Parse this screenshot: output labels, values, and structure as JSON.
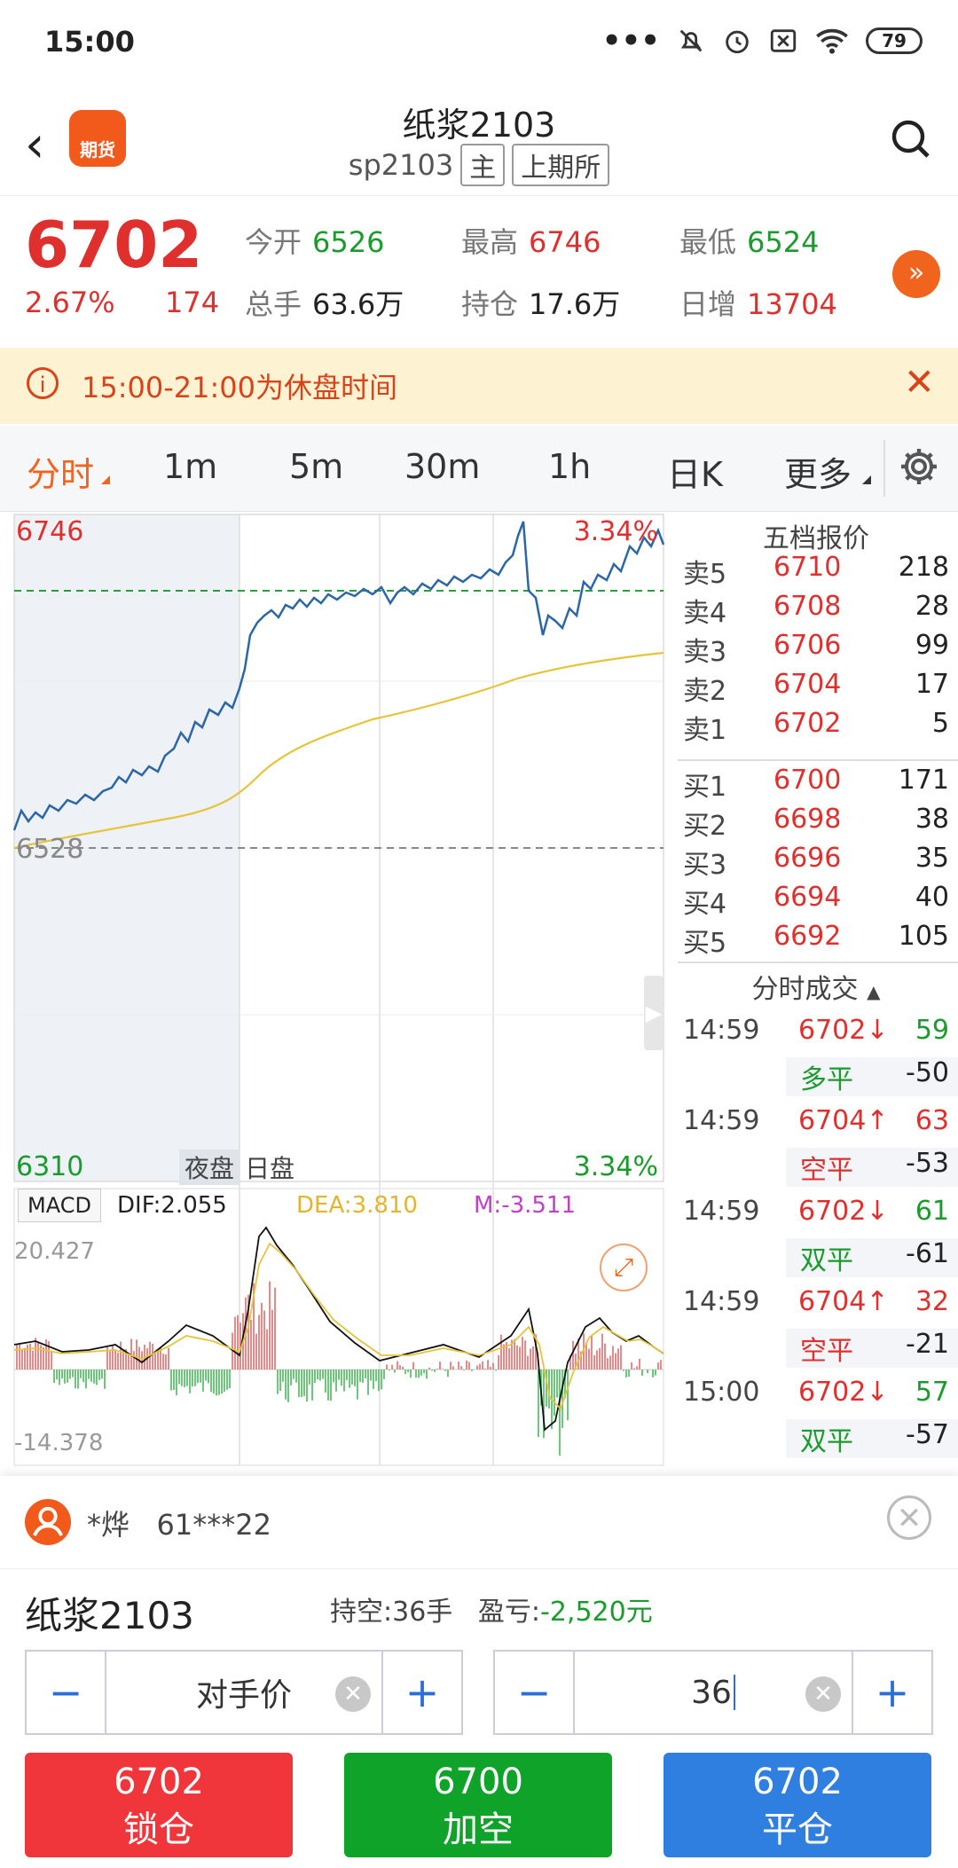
{
  "status_bar": {
    "time": "15:00",
    "battery": "79"
  },
  "header": {
    "logo_text": "期货",
    "title": "纸浆2103",
    "code": "sp2103",
    "tag_main": "主",
    "tag_exchange": "上期所"
  },
  "quote": {
    "price": "6702",
    "pct": "2.67%",
    "change": "174",
    "open_label": "今开",
    "open": "6526",
    "high_label": "最高",
    "high": "6746",
    "low_label": "最低",
    "low": "6524",
    "volume_label": "总手",
    "volume": "63.6万",
    "oi_label": "持仓",
    "oi": "17.6万",
    "daily_label": "日增",
    "daily": "13704"
  },
  "notice": {
    "text": "15:00-21:00为休盘时间"
  },
  "tabs": [
    {
      "label": "分时"
    },
    {
      "label": "1m"
    },
    {
      "label": "5m"
    },
    {
      "label": "30m"
    },
    {
      "label": "1h"
    },
    {
      "label": "日K"
    },
    {
      "label": "更多"
    }
  ],
  "chart": {
    "top_price": "6746",
    "top_pct": "3.34%",
    "base_price": "6528",
    "bottom_price": "6310",
    "bottom_pct": "3.34%",
    "night_label": "夜盘",
    "day_label": "日盘",
    "macd_label": "MACD",
    "dif": "DIF:2.055",
    "dea": "DEA:3.810",
    "m": "M:-3.511",
    "macd_top": "20.427",
    "macd_bottom": "-14.378"
  },
  "chart_data": {
    "type": "line",
    "series": [],
    "ylim": [
      6310,
      6746
    ],
    "reference": 6528
  },
  "orderbook": {
    "title": "五档报价",
    "asks": [
      {
        "label": "卖5",
        "price": "6710",
        "qty": "218"
      },
      {
        "label": "卖4",
        "price": "6708",
        "qty": "28"
      },
      {
        "label": "卖3",
        "price": "6706",
        "qty": "99"
      },
      {
        "label": "卖2",
        "price": "6704",
        "qty": "17"
      },
      {
        "label": "卖1",
        "price": "6702",
        "qty": "5"
      }
    ],
    "bids": [
      {
        "label": "买1",
        "price": "6700",
        "qty": "171"
      },
      {
        "label": "买2",
        "price": "6698",
        "qty": "38"
      },
      {
        "label": "买3",
        "price": "6696",
        "qty": "35"
      },
      {
        "label": "买4",
        "price": "6694",
        "qty": "40"
      },
      {
        "label": "买5",
        "price": "6692",
        "qty": "105"
      }
    ],
    "trades_title": "分时成交",
    "trades": [
      {
        "time": "14:59",
        "price": "6702↓",
        "qty": "59",
        "type": "多平",
        "oi": "-50",
        "dir": "down"
      },
      {
        "time": "14:59",
        "price": "6704↑",
        "qty": "63",
        "type": "空平",
        "oi": "-53",
        "dir": "up"
      },
      {
        "time": "14:59",
        "price": "6702↓",
        "qty": "61",
        "type": "双平",
        "oi": "-61",
        "dir": "down"
      },
      {
        "time": "14:59",
        "price": "6704↑",
        "qty": "32",
        "type": "空平",
        "oi": "-21",
        "dir": "up"
      },
      {
        "time": "15:00",
        "price": "6702↓",
        "qty": "57",
        "type": "双平",
        "oi": "-57",
        "dir": "down"
      }
    ]
  },
  "panel": {
    "user_name": "*烨",
    "user_id": "61***22",
    "product": "纸浆2103",
    "position": "持空:36手",
    "pnl_label": "盈亏:",
    "pnl_value": "-2,520元",
    "price_mode": "对手价",
    "qty": "36",
    "buttons": [
      {
        "price": "6702",
        "label": "锁仓",
        "color": "#f0353b"
      },
      {
        "price": "6700",
        "label": "加空",
        "color": "#10a32a"
      },
      {
        "price": "6702",
        "label": "平仓",
        "color": "#2f7fe0"
      }
    ]
  },
  "colors": {
    "up": "#e0302e",
    "down": "#1a9c2c",
    "accent": "#f0641e",
    "price_line": "#2b67a6",
    "avg_line": "#e6c43a"
  }
}
